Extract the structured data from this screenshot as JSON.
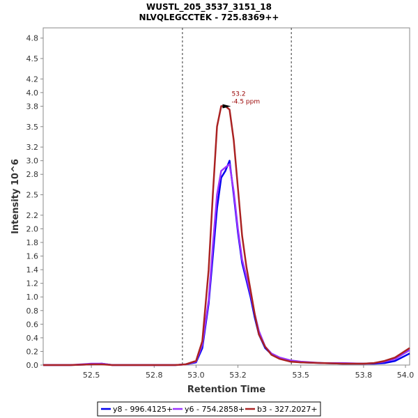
{
  "chart_data": {
    "type": "line",
    "title": "WUSTL_205_3537_3151_18",
    "subtitle": "NLVQLEGCCTEK - 725.8369++",
    "xlabel": "Retention Time",
    "ylabel": "Intensity 10^6",
    "xlim": [
      52.27,
      54.02
    ],
    "ylim": [
      0,
      4.95
    ],
    "x_ticks": [
      52.5,
      52.8,
      53.0,
      53.2,
      53.5,
      53.8,
      54.0
    ],
    "y_ticks": [
      0.0,
      0.2,
      0.4,
      0.6,
      0.8,
      1.0,
      1.2,
      1.4,
      1.6,
      1.8,
      2.0,
      2.2,
      2.5,
      2.8,
      3.0,
      3.2,
      3.5,
      3.8,
      4.0,
      4.2,
      4.5,
      4.8
    ],
    "grid": false,
    "legend_position": "bottom",
    "integration_bounds": [
      52.935,
      53.455
    ],
    "annotation": {
      "x": 53.16,
      "y": 3.8,
      "lines": [
        "53.2",
        "-4.5 ppm"
      ],
      "color": "#990000"
    },
    "series": [
      {
        "name": "y8 - 996.4125+",
        "color": "#0000ee",
        "x": [
          52.27,
          52.4,
          52.5,
          52.55,
          52.6,
          52.7,
          52.8,
          52.9,
          52.95,
          53.0,
          53.03,
          53.06,
          53.08,
          53.1,
          53.12,
          53.14,
          53.16,
          53.18,
          53.2,
          53.22,
          53.24,
          53.26,
          53.28,
          53.3,
          53.33,
          53.36,
          53.4,
          53.45,
          53.5,
          53.6,
          53.7,
          53.8,
          53.85,
          53.9,
          53.95,
          54.02
        ],
        "y": [
          0.0,
          0.0,
          0.01,
          0.02,
          0.0,
          0.0,
          0.0,
          0.0,
          0.01,
          0.04,
          0.25,
          0.9,
          1.6,
          2.3,
          2.75,
          2.85,
          3.0,
          2.5,
          1.95,
          1.5,
          1.25,
          1.0,
          0.7,
          0.45,
          0.25,
          0.16,
          0.1,
          0.06,
          0.04,
          0.03,
          0.02,
          0.02,
          0.02,
          0.03,
          0.06,
          0.17
        ]
      },
      {
        "name": "y6 - 754.2858+",
        "color": "#9933ff",
        "x": [
          52.27,
          52.4,
          52.5,
          52.55,
          52.6,
          52.7,
          52.8,
          52.9,
          52.95,
          53.0,
          53.03,
          53.06,
          53.08,
          53.1,
          53.12,
          53.14,
          53.16,
          53.18,
          53.2,
          53.22,
          53.24,
          53.26,
          53.28,
          53.3,
          53.33,
          53.36,
          53.4,
          53.45,
          53.5,
          53.6,
          53.7,
          53.8,
          53.85,
          53.9,
          53.95,
          54.02
        ],
        "y": [
          0.0,
          0.0,
          0.02,
          0.02,
          0.0,
          0.0,
          0.0,
          0.0,
          0.01,
          0.05,
          0.3,
          0.95,
          1.75,
          2.5,
          2.85,
          2.9,
          2.95,
          2.55,
          2.0,
          1.55,
          1.3,
          1.05,
          0.75,
          0.5,
          0.27,
          0.17,
          0.11,
          0.07,
          0.05,
          0.03,
          0.03,
          0.02,
          0.03,
          0.05,
          0.09,
          0.22
        ]
      },
      {
        "name": "b3 - 327.2027+",
        "color": "#aa2222",
        "x": [
          52.27,
          52.4,
          52.5,
          52.55,
          52.6,
          52.7,
          52.8,
          52.9,
          52.95,
          53.0,
          53.03,
          53.06,
          53.08,
          53.1,
          53.12,
          53.14,
          53.16,
          53.18,
          53.2,
          53.22,
          53.24,
          53.26,
          53.28,
          53.3,
          53.33,
          53.36,
          53.4,
          53.45,
          53.5,
          53.6,
          53.7,
          53.8,
          53.85,
          53.9,
          53.95,
          54.02
        ],
        "y": [
          0.0,
          0.0,
          0.01,
          0.01,
          0.0,
          0.0,
          0.0,
          0.0,
          0.01,
          0.06,
          0.35,
          1.4,
          2.5,
          3.5,
          3.8,
          3.8,
          3.75,
          3.3,
          2.6,
          1.9,
          1.45,
          1.1,
          0.75,
          0.45,
          0.27,
          0.15,
          0.09,
          0.05,
          0.04,
          0.03,
          0.02,
          0.02,
          0.03,
          0.06,
          0.11,
          0.25
        ]
      }
    ]
  }
}
